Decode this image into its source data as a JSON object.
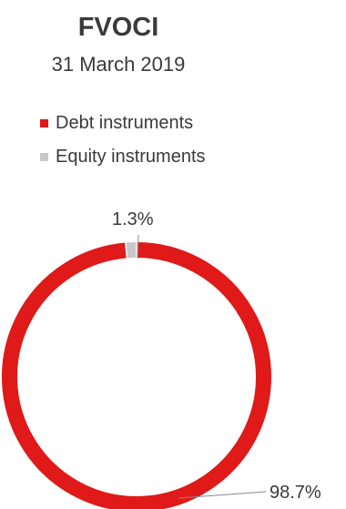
{
  "chart_data": {
    "type": "pie",
    "variant": "donut",
    "title": "FVOCI",
    "subtitle": "31 March 2019",
    "legend": {
      "placement": "top-left",
      "entries": [
        "Debt instruments",
        "Equity instruments"
      ]
    },
    "series": [
      {
        "name": "",
        "values": [
          98.7,
          1.3
        ]
      }
    ],
    "categories": [
      "Debt instruments",
      "Equity instruments"
    ],
    "data_labels": [
      "98.7%",
      "1.3%"
    ],
    "colors": [
      "#e01919",
      "#c8c8c8"
    ]
  }
}
